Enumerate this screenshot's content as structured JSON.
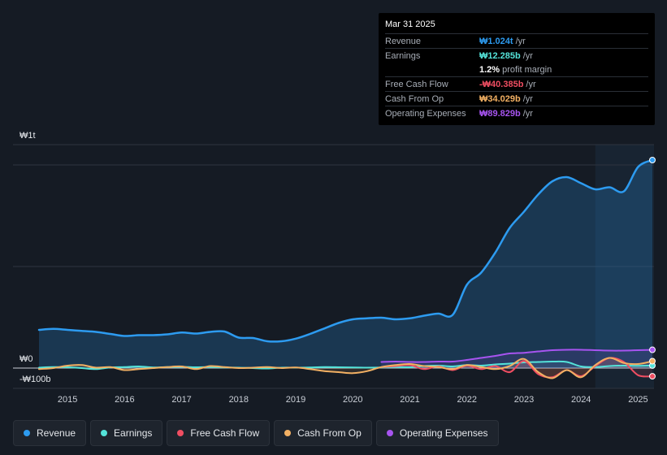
{
  "chart_data": {
    "type": "line",
    "y_unit": "₩",
    "ylim": [
      -100,
      1100
    ],
    "y_axis_labels": [
      {
        "label": "₩1t",
        "value": 1000
      },
      {
        "label": "₩0",
        "value": 0
      },
      {
        "label": "-₩100b",
        "value": -100
      }
    ],
    "x_ticks": [
      "2015",
      "2016",
      "2017",
      "2018",
      "2019",
      "2020",
      "2021",
      "2022",
      "2023",
      "2024",
      "2025"
    ],
    "x_tick_values": [
      2015,
      2016,
      2017,
      2018,
      2019,
      2020,
      2021,
      2022,
      2023,
      2024,
      2025
    ],
    "xlim": [
      2014.5,
      2025.25
    ],
    "highlight_start": 2024.25,
    "series": [
      {
        "name": "Revenue",
        "color": "#2d9bf0",
        "area": true,
        "points": [
          [
            2014.5,
            188
          ],
          [
            2014.75,
            193
          ],
          [
            2015,
            188
          ],
          [
            2015.25,
            183
          ],
          [
            2015.5,
            178
          ],
          [
            2015.75,
            168
          ],
          [
            2016,
            158
          ],
          [
            2016.25,
            162
          ],
          [
            2016.5,
            162
          ],
          [
            2016.75,
            166
          ],
          [
            2017,
            175
          ],
          [
            2017.25,
            170
          ],
          [
            2017.5,
            178
          ],
          [
            2017.75,
            180
          ],
          [
            2018,
            150
          ],
          [
            2018.25,
            148
          ],
          [
            2018.5,
            132
          ],
          [
            2018.75,
            132
          ],
          [
            2019,
            145
          ],
          [
            2019.25,
            168
          ],
          [
            2019.5,
            195
          ],
          [
            2019.75,
            222
          ],
          [
            2020,
            240
          ],
          [
            2020.25,
            245
          ],
          [
            2020.5,
            248
          ],
          [
            2020.75,
            240
          ],
          [
            2021,
            245
          ],
          [
            2021.25,
            258
          ],
          [
            2021.5,
            268
          ],
          [
            2021.75,
            262
          ],
          [
            2022,
            410
          ],
          [
            2022.25,
            470
          ],
          [
            2022.5,
            570
          ],
          [
            2022.75,
            690
          ],
          [
            2023,
            770
          ],
          [
            2023.25,
            855
          ],
          [
            2023.5,
            920
          ],
          [
            2023.75,
            940
          ],
          [
            2024,
            910
          ],
          [
            2024.25,
            880
          ],
          [
            2024.5,
            890
          ],
          [
            2024.75,
            870
          ],
          [
            2025,
            990
          ],
          [
            2025.25,
            1024
          ]
        ]
      },
      {
        "name": "Earnings",
        "color": "#54e3d9",
        "points": [
          [
            2014.5,
            2
          ],
          [
            2014.75,
            5
          ],
          [
            2015,
            4
          ],
          [
            2015.25,
            0
          ],
          [
            2015.5,
            -5
          ],
          [
            2015.75,
            3
          ],
          [
            2016,
            5
          ],
          [
            2016.25,
            8
          ],
          [
            2016.5,
            3
          ],
          [
            2016.75,
            5
          ],
          [
            2017,
            6
          ],
          [
            2017.25,
            4
          ],
          [
            2017.5,
            5
          ],
          [
            2017.75,
            3
          ],
          [
            2018,
            2
          ],
          [
            2018.25,
            0
          ],
          [
            2018.5,
            -2
          ],
          [
            2018.75,
            2
          ],
          [
            2019,
            2
          ],
          [
            2019.25,
            3
          ],
          [
            2019.5,
            5
          ],
          [
            2019.75,
            4
          ],
          [
            2020,
            3
          ],
          [
            2020.25,
            2
          ],
          [
            2020.5,
            3
          ],
          [
            2020.75,
            5
          ],
          [
            2021,
            4
          ],
          [
            2021.25,
            10
          ],
          [
            2021.5,
            12
          ],
          [
            2021.75,
            8
          ],
          [
            2022,
            15
          ],
          [
            2022.25,
            12
          ],
          [
            2022.5,
            18
          ],
          [
            2022.75,
            22
          ],
          [
            2023,
            28
          ],
          [
            2023.25,
            30
          ],
          [
            2023.5,
            32
          ],
          [
            2023.75,
            30
          ],
          [
            2024,
            8
          ],
          [
            2024.25,
            5
          ],
          [
            2024.5,
            10
          ],
          [
            2024.75,
            12
          ],
          [
            2025,
            11
          ],
          [
            2025.25,
            12.3
          ]
        ]
      },
      {
        "name": "Free Cash Flow",
        "color": "#f04e62",
        "points": [
          [
            2020.5,
            5
          ],
          [
            2020.75,
            10
          ],
          [
            2021,
            15
          ],
          [
            2021.25,
            -5
          ],
          [
            2021.5,
            8
          ],
          [
            2021.75,
            -10
          ],
          [
            2022,
            12
          ],
          [
            2022.25,
            -5
          ],
          [
            2022.5,
            10
          ],
          [
            2022.75,
            -20
          ],
          [
            2023,
            35
          ],
          [
            2023.25,
            -30
          ],
          [
            2023.5,
            -45
          ],
          [
            2023.75,
            -10
          ],
          [
            2024,
            -40
          ],
          [
            2024.25,
            10
          ],
          [
            2024.5,
            50
          ],
          [
            2024.75,
            30
          ],
          [
            2025,
            -35
          ],
          [
            2025.25,
            -40.4
          ]
        ]
      },
      {
        "name": "Cash From Op",
        "color": "#f2b063",
        "points": [
          [
            2014.5,
            -5
          ],
          [
            2014.75,
            0
          ],
          [
            2015,
            12
          ],
          [
            2015.25,
            15
          ],
          [
            2015.5,
            2
          ],
          [
            2015.75,
            5
          ],
          [
            2016,
            -10
          ],
          [
            2016.25,
            -5
          ],
          [
            2016.5,
            0
          ],
          [
            2016.75,
            5
          ],
          [
            2017,
            8
          ],
          [
            2017.25,
            -5
          ],
          [
            2017.5,
            10
          ],
          [
            2017.75,
            5
          ],
          [
            2018,
            0
          ],
          [
            2018.25,
            2
          ],
          [
            2018.5,
            5
          ],
          [
            2018.75,
            0
          ],
          [
            2019,
            3
          ],
          [
            2019.25,
            -5
          ],
          [
            2019.5,
            -15
          ],
          [
            2019.75,
            -20
          ],
          [
            2020,
            -25
          ],
          [
            2020.25,
            -15
          ],
          [
            2020.5,
            5
          ],
          [
            2020.75,
            15
          ],
          [
            2021,
            20
          ],
          [
            2021.25,
            10
          ],
          [
            2021.5,
            5
          ],
          [
            2021.75,
            -5
          ],
          [
            2022,
            15
          ],
          [
            2022.25,
            5
          ],
          [
            2022.5,
            -5
          ],
          [
            2022.75,
            10
          ],
          [
            2023,
            45
          ],
          [
            2023.25,
            -20
          ],
          [
            2023.5,
            -50
          ],
          [
            2023.75,
            -10
          ],
          [
            2024,
            -45
          ],
          [
            2024.25,
            15
          ],
          [
            2024.5,
            50
          ],
          [
            2024.75,
            25
          ],
          [
            2025,
            20
          ],
          [
            2025.25,
            34
          ]
        ]
      },
      {
        "name": "Operating Expenses",
        "color": "#a754f0",
        "points": [
          [
            2020.5,
            30
          ],
          [
            2020.75,
            32
          ],
          [
            2021,
            30
          ],
          [
            2021.25,
            30
          ],
          [
            2021.5,
            32
          ],
          [
            2021.75,
            32
          ],
          [
            2022,
            40
          ],
          [
            2022.25,
            50
          ],
          [
            2022.5,
            60
          ],
          [
            2022.75,
            72
          ],
          [
            2023,
            75
          ],
          [
            2023.25,
            82
          ],
          [
            2023.5,
            88
          ],
          [
            2023.75,
            90
          ],
          [
            2024,
            90
          ],
          [
            2024.25,
            88
          ],
          [
            2024.5,
            86
          ],
          [
            2024.75,
            86
          ],
          [
            2025,
            88
          ],
          [
            2025.25,
            89.8
          ]
        ]
      }
    ]
  },
  "tooltip": {
    "date": "Mar 31 2025",
    "rows": [
      {
        "label": "Revenue",
        "value": "₩1.024t",
        "unit": "/yr"
      },
      {
        "label": "Earnings",
        "value": "₩12.285b",
        "unit": "/yr"
      },
      {
        "label": "",
        "value": "1.2%",
        "unit": "profit margin"
      },
      {
        "label": "Free Cash Flow",
        "value": "-₩40.385b",
        "unit": "/yr"
      },
      {
        "label": "Cash From Op",
        "value": "₩34.029b",
        "unit": "/yr"
      },
      {
        "label": "Operating Expenses",
        "value": "₩89.829b",
        "unit": "/yr"
      }
    ]
  },
  "legend": [
    {
      "label": "Revenue",
      "color": "#2d9bf0"
    },
    {
      "label": "Earnings",
      "color": "#54e3d9"
    },
    {
      "label": "Free Cash Flow",
      "color": "#f04e62"
    },
    {
      "label": "Cash From Op",
      "color": "#f2b063"
    },
    {
      "label": "Operating Expenses",
      "color": "#a754f0"
    }
  ]
}
